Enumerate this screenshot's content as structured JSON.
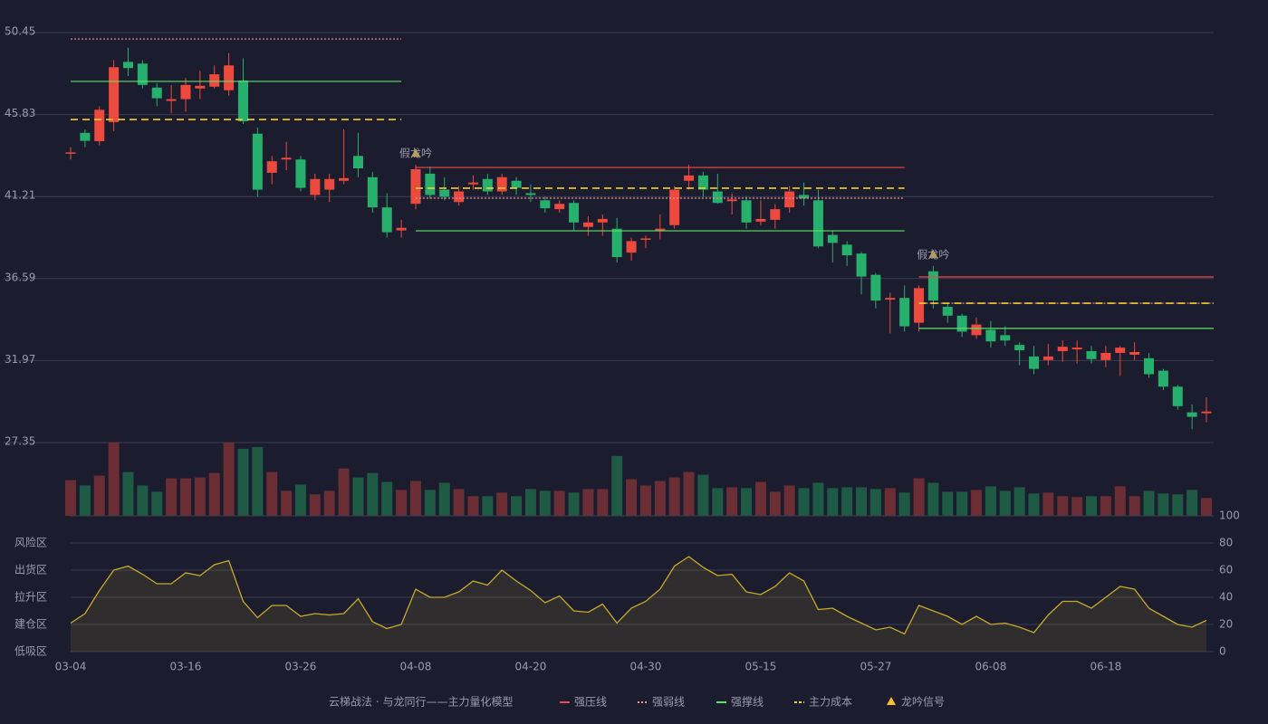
{
  "chart_data": [
    {
      "type": "candlestick",
      "categories": [
        "03-04",
        null,
        null,
        null,
        null,
        null,
        null,
        null,
        "03-16",
        null,
        null,
        null,
        null,
        null,
        null,
        null,
        "03-26",
        null,
        null,
        null,
        null,
        null,
        null,
        null,
        "04-08",
        null,
        null,
        null,
        null,
        null,
        null,
        null,
        "04-20",
        null,
        null,
        null,
        null,
        null,
        null,
        null,
        "04-30",
        null,
        null,
        null,
        null,
        null,
        null,
        null,
        "05-15",
        null,
        null,
        null,
        null,
        null,
        null,
        null,
        "05-27",
        null,
        null,
        null,
        null,
        null,
        null,
        null,
        "06-08",
        null,
        null,
        null,
        null,
        null,
        null,
        null,
        "06-18",
        null,
        null,
        null,
        null,
        null,
        null,
        null
      ],
      "open": [
        43.65,
        44.8,
        44.33,
        45.4,
        48.8,
        48.7,
        47.35,
        46.6,
        46.7,
        47.3,
        47.4,
        47.2,
        47.75,
        44.75,
        42.55,
        43.3,
        43.3,
        41.3,
        41.6,
        42.1,
        43.5,
        42.3,
        40.6,
        39.3,
        40.8,
        42.5,
        41.6,
        40.9,
        41.9,
        42.2,
        41.5,
        42.1,
        41.4,
        41.0,
        40.5,
        40.85,
        39.5,
        39.75,
        39.4,
        38.05,
        38.8,
        39.3,
        39.6,
        42.1,
        42.4,
        41.5,
        40.95,
        41.0,
        39.8,
        39.9,
        40.6,
        41.3,
        41.0,
        39.05,
        38.5,
        38.0,
        36.8,
        35.4,
        35.5,
        34.1,
        37.0,
        35.0,
        34.5,
        33.4,
        33.7,
        33.4,
        32.85,
        32.2,
        32.0,
        32.5,
        32.6,
        32.5,
        32.0,
        32.4,
        32.3,
        32.1,
        31.4,
        30.5,
        29.05,
        29.0
      ],
      "high": [
        44.0,
        45.0,
        46.3,
        48.9,
        49.6,
        48.9,
        47.6,
        47.5,
        47.9,
        48.3,
        48.6,
        49.3,
        49.0,
        45.1,
        43.5,
        44.3,
        43.5,
        42.5,
        42.5,
        45.0,
        44.8,
        42.6,
        41.4,
        39.9,
        43.0,
        42.9,
        42.3,
        41.8,
        42.4,
        42.5,
        42.5,
        42.3,
        41.9,
        41.2,
        41.0,
        41.0,
        40.1,
        40.2,
        40.0,
        38.9,
        39.0,
        40.2,
        41.8,
        43.0,
        42.6,
        42.5,
        41.4,
        41.2,
        41.0,
        40.8,
        41.8,
        42.0,
        41.6,
        39.3,
        38.7,
        38.1,
        36.9,
        35.8,
        36.2,
        36.2,
        37.3,
        35.2,
        34.6,
        34.4,
        34.2,
        33.9,
        33.0,
        32.8,
        32.9,
        33.1,
        33.1,
        32.8,
        32.8,
        32.8,
        33.0,
        32.4,
        31.5,
        30.6,
        29.5,
        29.9
      ],
      "low": [
        43.3,
        44.0,
        44.1,
        44.9,
        48.0,
        47.3,
        46.3,
        45.9,
        46.0,
        46.7,
        47.3,
        46.9,
        45.3,
        41.2,
        41.9,
        42.7,
        41.5,
        41.0,
        40.9,
        41.9,
        42.3,
        40.3,
        38.9,
        38.9,
        40.5,
        41.1,
        41.0,
        40.7,
        41.6,
        41.3,
        41.3,
        41.3,
        40.9,
        40.3,
        40.3,
        39.3,
        39.0,
        39.0,
        37.5,
        37.6,
        38.3,
        38.8,
        39.4,
        41.6,
        41.2,
        40.8,
        40.2,
        39.4,
        39.6,
        39.4,
        40.3,
        40.7,
        38.3,
        37.5,
        37.3,
        35.7,
        34.9,
        33.5,
        33.6,
        33.6,
        34.9,
        34.1,
        33.3,
        33.2,
        32.7,
        32.8,
        31.7,
        31.2,
        31.7,
        31.9,
        31.8,
        31.8,
        31.6,
        31.1,
        32.0,
        31.0,
        30.3,
        29.2,
        28.1,
        28.5
      ],
      "close": [
        43.7,
        44.35,
        46.1,
        48.5,
        48.45,
        47.5,
        46.75,
        46.7,
        47.5,
        47.45,
        48.1,
        48.6,
        45.45,
        41.6,
        43.2,
        43.4,
        41.7,
        42.2,
        42.2,
        42.25,
        42.8,
        40.6,
        39.2,
        39.45,
        42.75,
        41.3,
        41.2,
        41.5,
        42.0,
        41.5,
        42.3,
        41.7,
        41.3,
        40.55,
        40.8,
        39.75,
        39.75,
        39.95,
        37.8,
        38.7,
        38.85,
        39.4,
        41.6,
        42.4,
        41.6,
        40.85,
        41.05,
        39.75,
        39.95,
        40.5,
        41.5,
        41.1,
        38.4,
        38.6,
        37.9,
        36.7,
        35.35,
        35.5,
        33.9,
        36.05,
        35.35,
        34.5,
        33.6,
        34.0,
        33.05,
        33.1,
        32.55,
        31.5,
        32.2,
        32.75,
        32.7,
        32.05,
        32.4,
        32.7,
        32.45,
        31.2,
        30.5,
        29.4,
        28.8,
        29.1
      ],
      "volume": [
        40,
        34,
        45,
        82,
        49,
        34,
        27,
        42,
        42,
        43,
        48,
        82,
        75,
        77,
        49,
        28,
        35,
        24,
        28,
        53,
        43,
        48,
        38,
        29,
        39,
        29,
        37,
        30,
        22,
        22,
        26,
        22,
        30,
        28,
        28,
        26,
        30,
        30,
        67,
        41,
        34,
        39,
        43,
        49,
        46,
        31,
        32,
        31,
        38,
        27,
        34,
        31,
        37,
        31,
        32,
        32,
        30,
        31,
        26,
        42,
        37,
        27,
        27,
        29,
        33,
        28,
        32,
        25,
        26,
        22,
        21,
        22,
        22,
        33,
        22,
        28,
        25,
        24,
        29,
        20
      ],
      "up_color": "#ec4a3e",
      "down_color": "#27b06d",
      "up_volume_color": "#6a2e34",
      "down_volume_color": "#1f5a45",
      "ylim": [
        27.35,
        50.45
      ],
      "yticks": [
        27.35,
        31.97,
        36.59,
        41.21,
        45.83,
        50.45
      ],
      "grid": true,
      "lines": [
        {
          "name": "强压线",
          "color": "#f04a4a",
          "style": "solid"
        },
        {
          "name": "强弱线",
          "color": "#ef8f9a",
          "style": "dotted"
        },
        {
          "name": "强撑线",
          "color": "#5fe06a",
          "style": "solid"
        },
        {
          "name": "主力成本",
          "color": "#f5d02a",
          "style": "dashed"
        }
      ],
      "levels": [
        {
          "start": 0,
          "end": 23,
          "values": [
            null,
            50.09,
            47.7,
            45.55
          ]
        },
        {
          "start": 24,
          "end": 58,
          "values": [
            42.85,
            41.12,
            39.28,
            41.68
          ]
        },
        {
          "start": 59,
          "end": 79,
          "values": [
            36.68,
            35.2,
            33.78,
            35.2
          ]
        }
      ],
      "signals": [
        {
          "index": 24,
          "label": "假龙吟"
        },
        {
          "index": 60,
          "label": "假龙吟"
        }
      ],
      "signal_name": "龙吟信号",
      "signal_color": "#f5c030",
      "legend_title": "云梯战法 · 与龙同行——主力量化模型"
    },
    {
      "type": "line",
      "values": [
        21,
        28,
        45,
        60,
        63,
        57,
        50,
        50,
        58,
        56,
        64,
        67,
        37,
        25,
        34,
        34,
        26,
        28,
        27,
        28,
        39,
        22,
        17,
        20,
        46,
        40,
        40,
        44,
        52,
        49,
        60,
        52,
        45,
        36,
        41,
        30,
        29,
        35,
        21,
        32,
        37,
        46,
        63,
        70,
        62,
        56,
        57,
        44,
        42,
        48,
        58,
        52,
        31,
        32,
        26,
        21,
        16,
        18,
        13,
        34,
        30,
        26,
        20,
        26,
        20,
        21,
        18,
        14,
        27,
        37,
        37,
        32,
        40,
        48,
        46,
        32,
        26,
        20,
        18,
        23
      ],
      "color": "#c9a92a",
      "ylim": [
        0,
        100
      ],
      "yticks": [
        0,
        20,
        40,
        60,
        80,
        100
      ],
      "ytick_colors": [
        "#ff4a4a",
        "#f0903a",
        "#4f8ef0",
        "#e24ad6",
        "#f0a030",
        "#3fe05a"
      ],
      "zones": [
        {
          "label": "风险区",
          "value": 80,
          "color": "#f0a030"
        },
        {
          "label": "出货区",
          "value": 60,
          "color": "#e24ad6"
        },
        {
          "label": "拉升区",
          "value": 40,
          "color": "#4f8ef0"
        },
        {
          "label": "建仓区",
          "value": 20,
          "color": "#ff5a4a"
        },
        {
          "label": "低吸区",
          "value": 0,
          "color": "#ff4a4a"
        }
      ]
    }
  ]
}
